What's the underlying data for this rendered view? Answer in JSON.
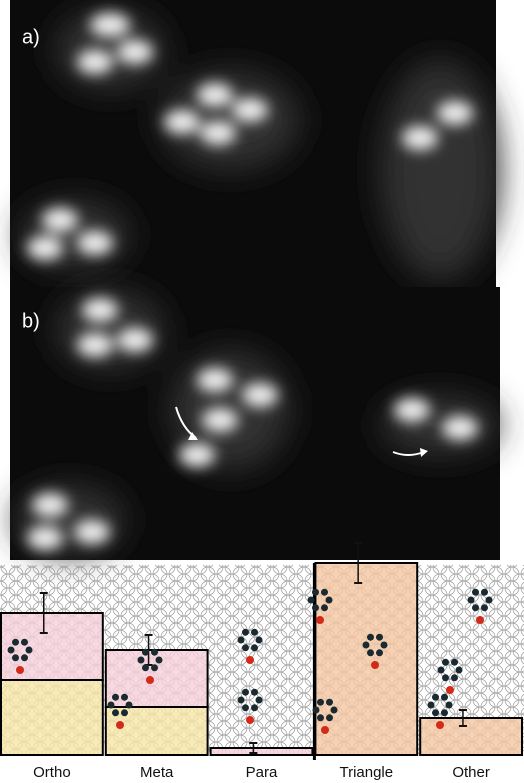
{
  "panels": [
    {
      "label": "a)"
    },
    {
      "label": "b)"
    }
  ],
  "chart_data": {
    "type": "bar",
    "categories": [
      "Ortho",
      "Meta",
      "Para",
      "Triangle",
      "Other"
    ],
    "series": [
      {
        "color": "#f6e6a6",
        "values": [
          75,
          48,
          null,
          null,
          null
        ]
      },
      {
        "color": "#f6cfda",
        "values": [
          67,
          57,
          7,
          null,
          null
        ]
      },
      {
        "color": "#f5c6a0",
        "values": [
          null,
          null,
          null,
          192,
          37
        ]
      }
    ],
    "errors": [
      20,
      15,
      5,
      20,
      8
    ],
    "ylim": [
      0,
      200
    ]
  }
}
